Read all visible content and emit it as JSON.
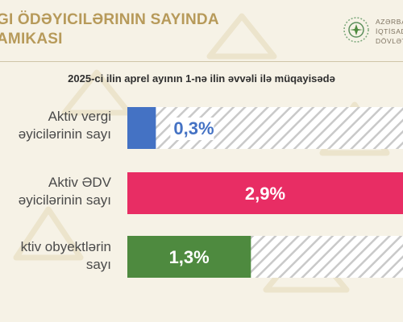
{
  "header": {
    "title_line1": "GI ÖDƏYICILƏRININ SAYINDA",
    "title_line2": "AMIKASI",
    "org_line1": "AZƏRBA",
    "org_line2": "İQTİSAD",
    "org_line3": "DÖVLƏT"
  },
  "colors": {
    "background": "#f6f2e6",
    "title": "#b79a5a",
    "series_1": "#4472c4",
    "series_2": "#e82d64",
    "series_3": "#4e8a3f",
    "hatch": "#c9c9c9"
  },
  "chart_data": {
    "type": "bar",
    "orientation": "horizontal",
    "title": "2025-ci ilin aprel ayının 1-nə ilin əvvəli ilə müqayisədə",
    "categories": [
      [
        "Aktiv vergi",
        "əyicilərinin sayı"
      ],
      [
        "Aktiv ƏDV",
        "əyicilərinin sayı"
      ],
      [
        "ktiv obyektlərin",
        "sayı"
      ]
    ],
    "values": [
      0.3,
      2.9,
      1.3
    ],
    "value_labels": [
      "0,3%",
      "2,9%",
      "1,3%"
    ],
    "unit": "%",
    "xlim": [
      0,
      2.9
    ],
    "grid": false,
    "legend": "none"
  }
}
